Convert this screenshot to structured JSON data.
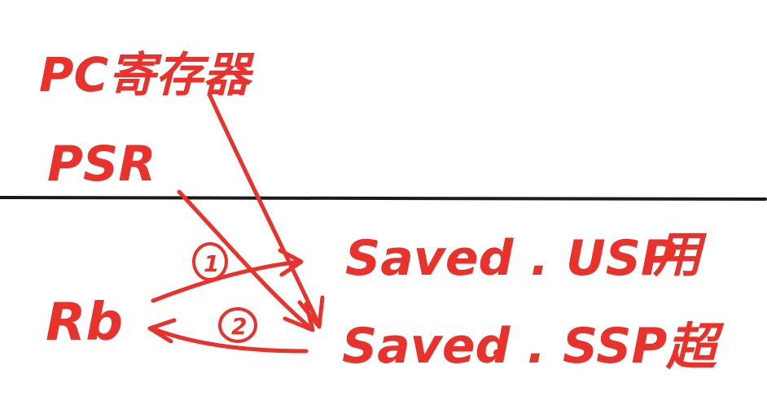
{
  "diagram": {
    "ink_color": "#e8322b",
    "line_color": "#1a1a1a",
    "labels": {
      "pc": "PC寄存器",
      "psr": "PSR",
      "rb": "Rb",
      "saved_usp": "Saved . USP",
      "saved_ssp": "Saved . SSP",
      "user_char": "用",
      "super_char": "超"
    },
    "steps": {
      "step1": "1",
      "step2": "2"
    }
  }
}
